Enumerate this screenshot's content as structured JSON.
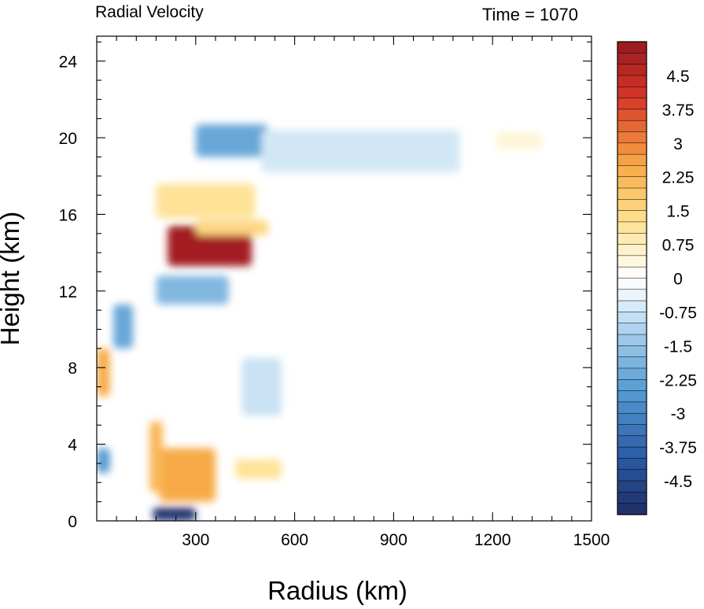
{
  "chart_data": {
    "type": "heatmap",
    "title": "Radial Velocity",
    "subtitle": "Time = 1070",
    "xlabel": "Radius (km)",
    "ylabel": "Height (km)",
    "xlim": [
      0,
      1500
    ],
    "ylim": [
      0,
      25.3
    ],
    "x_ticks": [
      300,
      600,
      900,
      1200,
      1500
    ],
    "y_ticks": [
      0,
      4,
      8,
      12,
      16,
      20,
      24
    ],
    "colorbar": {
      "min": -5.25,
      "max": 5.25,
      "interval": 0.25,
      "labels": [
        "4.5",
        "3.75",
        "3",
        "2.25",
        "1.5",
        "0.75",
        "0",
        "-0.75",
        "-1.5",
        "-2.25",
        "-3",
        "-3.75",
        "-4.5"
      ],
      "label_values": [
        4.5,
        3.75,
        3,
        2.25,
        1.5,
        0.75,
        0,
        -0.75,
        -1.5,
        -2.25,
        -3,
        -3.75,
        -4.5
      ]
    },
    "features": [
      {
        "r": [
          215,
          470
        ],
        "z": [
          13.3,
          15.4
        ],
        "value": 5.0
      },
      {
        "r": [
          300,
          520
        ],
        "z": [
          14.9,
          15.7
        ],
        "value": 1.5
      },
      {
        "r": [
          170,
          300
        ],
        "z": [
          0.0,
          0.7
        ],
        "value": -5.0
      },
      {
        "r": [
          190,
          360
        ],
        "z": [
          1.0,
          3.8
        ],
        "value": 2.5
      },
      {
        "r": [
          160,
          200
        ],
        "z": [
          1.5,
          5.2
        ],
        "value": 2.2
      },
      {
        "r": [
          300,
          520
        ],
        "z": [
          19.0,
          20.7
        ],
        "value": -2.2
      },
      {
        "r": [
          500,
          1100
        ],
        "z": [
          18.2,
          20.4
        ],
        "value": -0.7
      },
      {
        "r": [
          180,
          480
        ],
        "z": [
          15.8,
          17.6
        ],
        "value": 1.2
      },
      {
        "r": [
          180,
          400
        ],
        "z": [
          11.3,
          12.8
        ],
        "value": -1.8
      },
      {
        "r": [
          0,
          40
        ],
        "z": [
          6.5,
          9.0
        ],
        "value": 2.5
      },
      {
        "r": [
          50,
          110
        ],
        "z": [
          9.0,
          11.3
        ],
        "value": -2.2
      },
      {
        "r": [
          0,
          40
        ],
        "z": [
          2.5,
          3.8
        ],
        "value": -2.5
      },
      {
        "r": [
          420,
          560
        ],
        "z": [
          2.2,
          3.2
        ],
        "value": 1.2
      },
      {
        "r": [
          440,
          560
        ],
        "z": [
          5.5,
          8.5
        ],
        "value": -0.8
      },
      {
        "r": [
          1210,
          1350
        ],
        "z": [
          19.4,
          20.3
        ],
        "value": 0.5
      }
    ]
  }
}
